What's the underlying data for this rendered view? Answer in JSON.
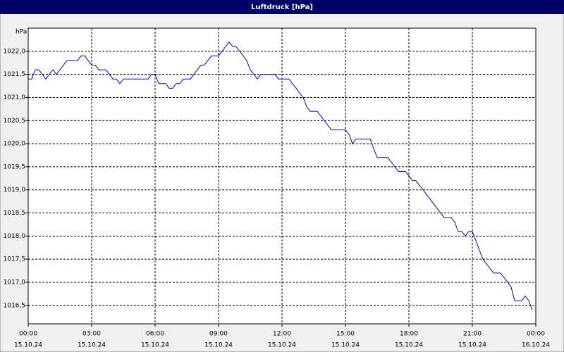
{
  "chart_data": {
    "type": "line",
    "title": "Luftdruck [hPa]",
    "y_unit": "hPa",
    "grid": true,
    "series": [
      {
        "name": "Luftdruck",
        "color": "#0000cc",
        "x": [
          0,
          0.17,
          0.33,
          0.5,
          0.67,
          0.83,
          1,
          1.17,
          1.33,
          1.5,
          1.67,
          1.83,
          2.33,
          2.5,
          2.67,
          2.83,
          3,
          3.17,
          3.33,
          3.67,
          3.83,
          4,
          4.17,
          4.33,
          4.5,
          5.67,
          5.83,
          6,
          6.17,
          6.5,
          6.67,
          6.83,
          7,
          7.17,
          7.33,
          7.67,
          7.83,
          8,
          8.17,
          8.33,
          8.5,
          8.67,
          9,
          9.17,
          9.33,
          9.5,
          9.67,
          9.83,
          10,
          10.17,
          10.33,
          10.5,
          10.67,
          10.83,
          11,
          11.67,
          11.83,
          12.33,
          12.5,
          12.67,
          12.83,
          13,
          13.17,
          13.33,
          13.67,
          13.83,
          14,
          14.17,
          14.33,
          15,
          15.17,
          15.33,
          15.5,
          16.17,
          16.33,
          16.5,
          17,
          17.17,
          17.33,
          17.5,
          17.83,
          18,
          18.17,
          18.33,
          18.67,
          19.33,
          19.5,
          19.67,
          20,
          20.17,
          20.33,
          20.5,
          20.67,
          20.83,
          21,
          21.17,
          21.33,
          21.5,
          21.67,
          21.83,
          22,
          22.33,
          22.5,
          22.67,
          22.83,
          23,
          23.33,
          23.5,
          23.67,
          23.83
        ],
        "values": [
          1021.4,
          1021.4,
          1021.6,
          1021.6,
          1021.5,
          1021.4,
          1021.5,
          1021.6,
          1021.5,
          1021.6,
          1021.7,
          1021.8,
          1021.8,
          1021.9,
          1021.9,
          1021.8,
          1021.7,
          1021.7,
          1021.6,
          1021.6,
          1021.5,
          1021.4,
          1021.4,
          1021.3,
          1021.4,
          1021.4,
          1021.5,
          1021.5,
          1021.3,
          1021.3,
          1021.2,
          1021.2,
          1021.3,
          1021.3,
          1021.4,
          1021.4,
          1021.5,
          1021.6,
          1021.7,
          1021.7,
          1021.8,
          1021.9,
          1021.9,
          1022.0,
          1022.1,
          1022.2,
          1022.1,
          1022.1,
          1022.0,
          1021.9,
          1021.8,
          1021.6,
          1021.5,
          1021.4,
          1021.5,
          1021.5,
          1021.4,
          1021.4,
          1021.3,
          1021.2,
          1021.1,
          1021.0,
          1020.8,
          1020.7,
          1020.7,
          1020.6,
          1020.5,
          1020.4,
          1020.3,
          1020.3,
          1020.2,
          1020.0,
          1020.1,
          1020.1,
          1019.9,
          1019.7,
          1019.7,
          1019.6,
          1019.5,
          1019.4,
          1019.4,
          1019.3,
          1019.2,
          1019.2,
          1019.0,
          1018.6,
          1018.5,
          1018.4,
          1018.4,
          1018.3,
          1018.1,
          1018.1,
          1018.0,
          1018.1,
          1018.1,
          1017.9,
          1017.7,
          1017.5,
          1017.4,
          1017.3,
          1017.2,
          1017.2,
          1017.1,
          1017.0,
          1016.9,
          1016.6,
          1016.6,
          1016.7,
          1016.6,
          1016.4
        ]
      }
    ],
    "xlim": [
      0,
      24
    ],
    "xticks": [
      {
        "value": 0,
        "label": "00:00"
      },
      {
        "value": 3,
        "label": "03:00"
      },
      {
        "value": 6,
        "label": "06:00"
      },
      {
        "value": 9,
        "label": "09:00"
      },
      {
        "value": 12,
        "label": "12:00"
      },
      {
        "value": 15,
        "label": "15:00"
      },
      {
        "value": 18,
        "label": "18:00"
      },
      {
        "value": 21,
        "label": "21:00"
      },
      {
        "value": 24,
        "label": "00:00"
      }
    ],
    "xtick_dates": [
      "15.10.24",
      "15.10.24",
      "15.10.24",
      "15.10.24",
      "15.10.24",
      "15.10.24",
      "15.10.24",
      "15.10.24",
      "16.10.24"
    ],
    "ylim": [
      1016.1,
      1022.5
    ],
    "yticks": [
      {
        "value": 1016.5,
        "label": "1016,5"
      },
      {
        "value": 1017,
        "label": "1017,0"
      },
      {
        "value": 1017.5,
        "label": "1017,5"
      },
      {
        "value": 1018,
        "label": "1018,0"
      },
      {
        "value": 1018.5,
        "label": "1018,5"
      },
      {
        "value": 1019,
        "label": "1019,0"
      },
      {
        "value": 1019.5,
        "label": "1019,5"
      },
      {
        "value": 1020,
        "label": "1020,0"
      },
      {
        "value": 1020.5,
        "label": "1020,5"
      },
      {
        "value": 1021,
        "label": "1021,0"
      },
      {
        "value": 1021.5,
        "label": "1021,5"
      },
      {
        "value": 1022,
        "label": "1022,0"
      }
    ]
  }
}
